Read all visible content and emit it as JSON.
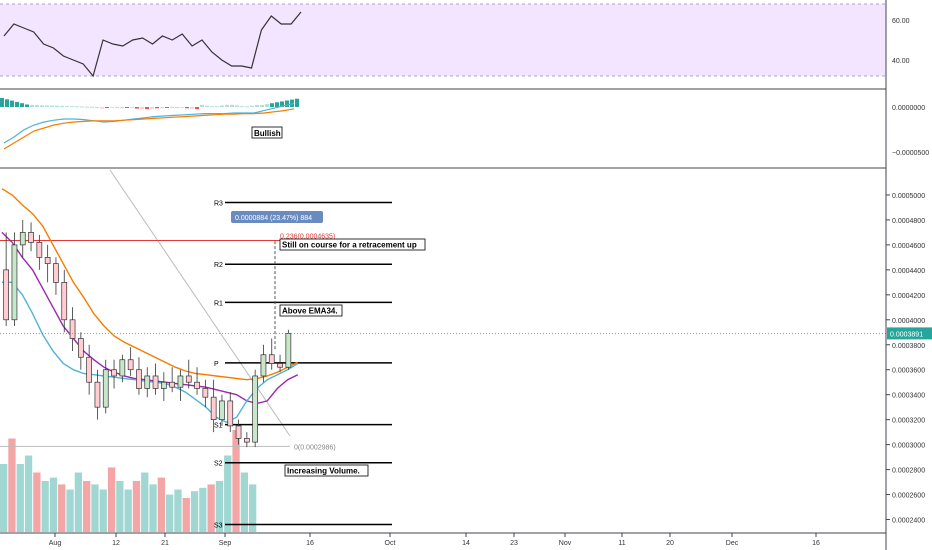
{
  "colors": {
    "up": "#9dd3cf",
    "up_body": "#d3eee0",
    "down": "#ef9a9a",
    "candle_up_fill": "#c8e6c9",
    "candle_down_fill": "#ffcdd2",
    "ema_orange": "#f57c00",
    "ema_purple": "#9c27b0",
    "ema_blue": "#4fb3d9",
    "rsi_band": "#f3e5ff",
    "fib_red": "#e53935",
    "pivot": "#000000",
    "accent": "#6a8bbf"
  },
  "chart_data": [
    {
      "type": "line",
      "panel": "rsi",
      "y_ticks": [
        "60.00",
        "40.00"
      ],
      "ylim": [
        26,
        70
      ],
      "band": [
        32,
        68
      ],
      "x": [
        0,
        2,
        4,
        6,
        8,
        10,
        12,
        14,
        16,
        18,
        20,
        22,
        24,
        26,
        28,
        30,
        32,
        34,
        36,
        38,
        40,
        42,
        44,
        46,
        48,
        50,
        52,
        54,
        56,
        58,
        60
      ],
      "values": [
        52,
        58,
        56,
        54,
        48,
        46,
        42,
        40,
        38,
        32,
        50,
        48,
        47,
        50,
        51,
        48,
        52,
        50,
        53,
        47,
        50,
        44,
        40,
        37,
        37,
        36,
        55,
        62,
        58,
        58,
        64
      ]
    },
    {
      "type": "bar",
      "panel": "macd",
      "y_ticks": [
        "0.0000000",
        "−0.0000500"
      ],
      "annotation": "Bullish",
      "hist_count": 60,
      "macd_line": [
        -60,
        -50,
        -38,
        -30,
        -25,
        -22,
        -20,
        -20,
        -21,
        -23,
        -25,
        -24,
        -22,
        -20,
        -18,
        -16,
        -15,
        -14,
        -13,
        -12,
        -11,
        -11,
        -11,
        -10,
        -10,
        -10,
        -6,
        -2,
        2,
        6
      ],
      "signal_line": [
        -70,
        -60,
        -50,
        -40,
        -35,
        -30,
        -27,
        -25,
        -24,
        -23,
        -23,
        -23,
        -22,
        -21,
        -20,
        -19,
        -18,
        -17,
        -16,
        -15,
        -14,
        -13,
        -12,
        -12,
        -11,
        -11,
        -10,
        -8,
        -6,
        -3
      ]
    },
    {
      "type": "candlestick",
      "panel": "price",
      "y_ticks": [
        "0.0005000",
        "0.0004800",
        "0.0004600",
        "0.0004400",
        "0.0004200",
        "0.0004000",
        "0.0003800",
        "0.0003600",
        "0.0003400",
        "0.0003200",
        "0.0003000",
        "0.0002800",
        "0.0002600",
        "0.0002400"
      ],
      "ylim": [
        0.00023,
        0.00052
      ],
      "last_price": "0.0003891",
      "x_ticks": [
        "Aug",
        "12",
        "21",
        "Sep",
        "16",
        "Oct",
        "14",
        "23",
        "Nov",
        "11",
        "20",
        "Dec",
        "16"
      ],
      "pivots": [
        {
          "label": "R3",
          "value": 0.000494
        },
        {
          "label": "R2",
          "value": 0.0004445
        },
        {
          "label": "R1",
          "value": 0.000414
        },
        {
          "label": "P",
          "value": 0.0003655
        },
        {
          "label": "S1",
          "value": 0.000316
        },
        {
          "label": "S2",
          "value": 0.0002855
        },
        {
          "label": "S3",
          "value": 0.000236
        }
      ],
      "fib_236": {
        "text": "0.236(0.0004635)",
        "value": 0.0004635
      },
      "fib_0": {
        "text": "0(0.0002986)",
        "value": 0.0002986
      },
      "measure_label": "0.0000884 (23.47%) 884",
      "notes": [
        "Still on course for a retracement up",
        "Above EMA34.",
        "Increasing Volume."
      ],
      "candles": [
        [
          0.00044,
          0.00047,
          0.000395,
          0.0004
        ],
        [
          0.0004,
          0.00047,
          0.000395,
          0.00046
        ],
        [
          0.00046,
          0.00048,
          0.00045,
          0.00047
        ],
        [
          0.00047,
          0.000478,
          0.000455,
          0.000462
        ],
        [
          0.000462,
          0.000468,
          0.00044,
          0.00045
        ],
        [
          0.00045,
          0.00046,
          0.00043,
          0.000445
        ],
        [
          0.000445,
          0.00045,
          0.00042,
          0.00043
        ],
        [
          0.00043,
          0.00044,
          0.00039,
          0.0004
        ],
        [
          0.0004,
          0.00041,
          0.000375,
          0.000385
        ],
        [
          0.000385,
          0.00039,
          0.00036,
          0.00037
        ],
        [
          0.00037,
          0.00038,
          0.00034,
          0.00035
        ],
        [
          0.00035,
          0.00036,
          0.00032,
          0.00033
        ],
        [
          0.00033,
          0.000368,
          0.000325,
          0.00036
        ],
        [
          0.00036,
          0.000368,
          0.000345,
          0.000355
        ],
        [
          0.000355,
          0.000372,
          0.00035,
          0.000368
        ],
        [
          0.000368,
          0.000378,
          0.000355,
          0.00036
        ],
        [
          0.00036,
          0.00037,
          0.00034,
          0.000345
        ],
        [
          0.000345,
          0.000362,
          0.000338,
          0.000355
        ],
        [
          0.000355,
          0.000365,
          0.00034,
          0.000345
        ],
        [
          0.000345,
          0.000358,
          0.000335,
          0.00035
        ],
        [
          0.00035,
          0.000362,
          0.000342,
          0.000346
        ],
        [
          0.000346,
          0.00036,
          0.000335,
          0.000355
        ],
        [
          0.000355,
          0.000368,
          0.000345,
          0.00035
        ],
        [
          0.00035,
          0.000362,
          0.00034,
          0.000345
        ],
        [
          0.000345,
          0.000352,
          0.00033,
          0.000338
        ],
        [
          0.000338,
          0.000352,
          0.00031,
          0.00032
        ],
        [
          0.00032,
          0.00034,
          0.000315,
          0.000335
        ],
        [
          0.000335,
          0.000342,
          0.00031,
          0.000315
        ],
        [
          0.000315,
          0.00032,
          0.0003,
          0.000305
        ],
        [
          0.000305,
          0.00031,
          0.000298,
          0.000302
        ],
        [
          0.000302,
          0.00036,
          0.000298,
          0.000355
        ],
        [
          0.000355,
          0.00038,
          0.00035,
          0.000372
        ],
        [
          0.000372,
          0.000385,
          0.00036,
          0.000365
        ],
        [
          0.000365,
          0.000372,
          0.000358,
          0.000362
        ],
        [
          0.000362,
          0.000392,
          0.00036,
          0.000389
        ]
      ],
      "volume": [
        0.4,
        0.55,
        0.4,
        0.45,
        0.35,
        0.3,
        0.32,
        0.28,
        0.25,
        0.35,
        0.3,
        0.28,
        0.25,
        0.38,
        0.3,
        0.25,
        0.3,
        0.35,
        0.28,
        0.32,
        0.22,
        0.25,
        0.2,
        0.24,
        0.26,
        0.28,
        0.3,
        0.45,
        0.6,
        0.35,
        0.28
      ],
      "ema_orange": [
        0.000505,
        0.0005,
        0.000492,
        0.000485,
        0.000475,
        0.00046,
        0.000445,
        0.00043,
        0.000418,
        0.000405,
        0.000395,
        0.000387,
        0.000382,
        0.000378,
        0.000374,
        0.00037,
        0.000366,
        0.000362,
        0.000359,
        0.000357,
        0.000356,
        0.000355,
        0.000354,
        0.000353,
        0.000352,
        0.000353,
        0.000355,
        0.000358,
        0.000362,
        0.000366
      ],
      "ema_purple": [
        0.00047,
        0.000462,
        0.00045,
        0.00044,
        0.000425,
        0.00041,
        0.000395,
        0.000385,
        0.000375,
        0.000368,
        0.000362,
        0.000358,
        0.000355,
        0.000353,
        0.000352,
        0.000351,
        0.00035,
        0.000349,
        0.000348,
        0.000347,
        0.000346,
        0.000344,
        0.000342,
        0.00034,
        0.000335,
        0.000333,
        0.000335,
        0.000345,
        0.000352,
        0.000356
      ],
      "ema_blue": [
        0.00043,
        0.00043,
        0.00042,
        0.000405,
        0.000388,
        0.000375,
        0.000365,
        0.00036,
        0.000357,
        0.000356,
        0.000355,
        0.000354,
        0.000353,
        0.000352,
        0.000351,
        0.00035,
        0.000349,
        0.000346,
        0.000342,
        0.000336,
        0.00033,
        0.000322,
        0.000318,
        0.000322,
        0.000335,
        0.000345,
        0.000352,
        0.000356,
        0.00036,
        0.000365
      ]
    }
  ]
}
